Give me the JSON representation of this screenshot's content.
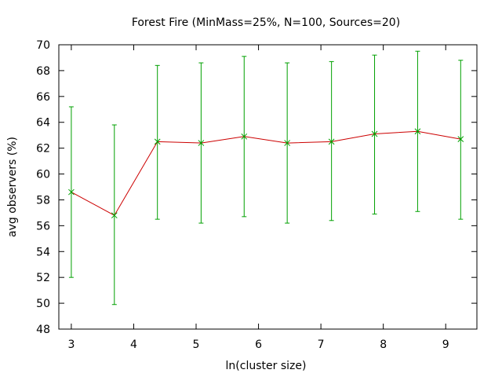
{
  "chart_data": {
    "type": "line",
    "title": "Forest Fire (MinMass=25%, N=100, Sources=20)",
    "xlabel": "ln(cluster size)",
    "ylabel": "avg observers (%)",
    "xlim": [
      2.8,
      9.5
    ],
    "ylim": [
      48,
      70
    ],
    "x_ticks": [
      3,
      4,
      5,
      6,
      7,
      8,
      9
    ],
    "y_ticks": [
      48,
      50,
      52,
      54,
      56,
      58,
      60,
      62,
      64,
      66,
      68,
      70
    ],
    "grid": false,
    "legend": "none",
    "series": [
      {
        "line_color": "#cc0000",
        "marker_color": "#00a000",
        "errorbar_color": "#00a000",
        "x": [
          3.0,
          3.69,
          4.38,
          5.08,
          5.77,
          6.46,
          7.17,
          7.86,
          8.55,
          9.24
        ],
        "y": [
          58.6,
          56.8,
          62.5,
          62.4,
          62.9,
          62.4,
          62.5,
          63.1,
          63.3,
          62.7
        ],
        "err_low": [
          52.0,
          49.9,
          56.5,
          56.2,
          56.7,
          56.2,
          56.4,
          56.9,
          57.1,
          56.5
        ],
        "err_high": [
          65.2,
          63.8,
          68.4,
          68.6,
          69.1,
          68.6,
          68.7,
          69.2,
          69.5,
          68.8
        ]
      }
    ]
  }
}
